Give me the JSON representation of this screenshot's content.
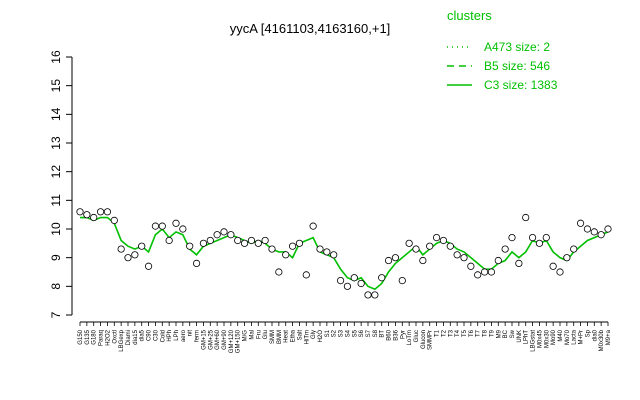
{
  "chart_data": {
    "type": "line",
    "title": "yycA [4161103,4163160,+1]",
    "xlabel": "",
    "ylabel": "",
    "ylim": [
      7,
      16
    ],
    "yticks": [
      7,
      8,
      9,
      10,
      11,
      12,
      13,
      14,
      15,
      16
    ],
    "grid": false,
    "legend_placement": "top-right",
    "colors": {
      "line": "#00c000",
      "point": "#000000",
      "text": "#000000",
      "legend": "#00c000"
    },
    "legend": {
      "title": "clusters",
      "entries": [
        {
          "label": "A473 size: 2",
          "style": "dotted"
        },
        {
          "label": "B5 size: 546",
          "style": "dashed"
        },
        {
          "label": "C3 size: 1383",
          "style": "solid"
        }
      ]
    },
    "x_tick_labels": [
      "G150",
      "G135",
      "G180",
      "Paraq",
      "H2O2",
      "Oxctl",
      "LBGexp",
      "Diami",
      "dia15",
      "dia5",
      "C90",
      "C30",
      "Cold",
      "HPh",
      "LPh",
      "aero",
      "nit",
      "ferm",
      "GM+15",
      "GM+25",
      "GM+60",
      "GM+90",
      "GM+120",
      "GM+150",
      "M/G",
      "Mal",
      "Fru",
      "Glu",
      "SMM",
      "BMM",
      "Heat",
      "Etha",
      "Salt",
      "HiTm",
      "Gly",
      "H2O",
      "S1",
      "S2",
      "S3",
      "S4",
      "S5",
      "S6",
      "S7",
      "S8",
      "BT",
      "B60",
      "B36",
      "Pyr",
      "LoTm",
      "Gluc",
      "Glucon",
      "SMMPr",
      "T1",
      "T2",
      "T3",
      "T4",
      "T5",
      "T6",
      "T7",
      "T8",
      "T9",
      "M9",
      "BC",
      "Sw",
      "UNK",
      "LPhT",
      "LBGstat",
      "M0x45",
      "M0x30",
      "Mo90",
      "M40",
      "Mo70",
      "Lacta",
      "M+Pr",
      "Sp",
      "dia0",
      "M0x30b",
      "M9+a"
    ],
    "x": [
      1,
      2,
      3,
      4,
      5,
      6,
      7,
      8,
      9,
      10,
      11,
      12,
      13,
      14,
      15,
      16,
      17,
      18,
      19,
      20,
      21,
      22,
      23,
      24,
      25,
      26,
      27,
      28,
      29,
      30,
      31,
      32,
      33,
      34,
      35,
      36,
      37,
      38,
      39,
      40,
      41,
      42,
      43,
      44,
      45,
      46,
      47,
      48,
      49,
      50,
      51,
      52,
      53,
      54,
      55,
      56,
      57,
      58,
      59,
      60,
      61,
      62,
      63,
      64,
      65,
      66,
      67,
      68,
      69,
      70,
      71,
      72,
      73,
      74,
      75,
      76,
      77,
      78
    ],
    "series": [
      {
        "style": "solid",
        "line_values": [
          10.4,
          10.4,
          10.3,
          10.4,
          10.4,
          10.2,
          9.6,
          9.4,
          9.3,
          9.4,
          9.2,
          9.8,
          10.0,
          9.7,
          9.9,
          9.8,
          9.3,
          9.1,
          9.4,
          9.5,
          9.6,
          9.7,
          9.8,
          9.7,
          9.6,
          9.5,
          9.6,
          9.5,
          9.3,
          9.2,
          9.2,
          9.0,
          9.5,
          9.6,
          9.7,
          9.2,
          9.1,
          9.0,
          8.6,
          8.3,
          8.2,
          8.3,
          8.0,
          7.9,
          8.1,
          8.5,
          8.8,
          9.0,
          9.2,
          9.4,
          9.1,
          9.3,
          9.5,
          9.6,
          9.5,
          9.3,
          9.2,
          9.0,
          8.8,
          8.6,
          8.6,
          8.8,
          8.9,
          9.2,
          9.0,
          9.2,
          9.6,
          9.5,
          9.6,
          9.2,
          9.0,
          8.9,
          9.2,
          9.4,
          9.6,
          9.7,
          9.8,
          9.9
        ],
        "point_values": [
          10.6,
          10.5,
          10.4,
          10.6,
          10.6,
          10.3,
          9.3,
          9.0,
          9.1,
          9.4,
          8.7,
          10.1,
          10.1,
          9.6,
          10.2,
          10.0,
          9.4,
          8.8,
          9.5,
          9.6,
          9.8,
          9.9,
          9.8,
          9.6,
          9.5,
          9.6,
          9.5,
          9.6,
          9.3,
          8.5,
          9.1,
          9.4,
          9.5,
          8.4,
          10.1,
          9.3,
          9.2,
          9.1,
          8.2,
          8.0,
          8.3,
          8.1,
          7.7,
          7.7,
          8.3,
          8.9,
          9.0,
          8.2,
          9.5,
          9.3,
          8.9,
          9.4,
          9.7,
          9.6,
          9.4,
          9.1,
          9.0,
          8.7,
          8.4,
          8.5,
          8.5,
          8.9,
          9.3,
          9.7,
          8.8,
          10.4,
          9.7,
          9.5,
          9.7,
          8.7,
          8.5,
          9.0,
          9.3,
          10.2,
          10.0,
          9.9,
          9.8,
          10.0
        ]
      }
    ]
  }
}
